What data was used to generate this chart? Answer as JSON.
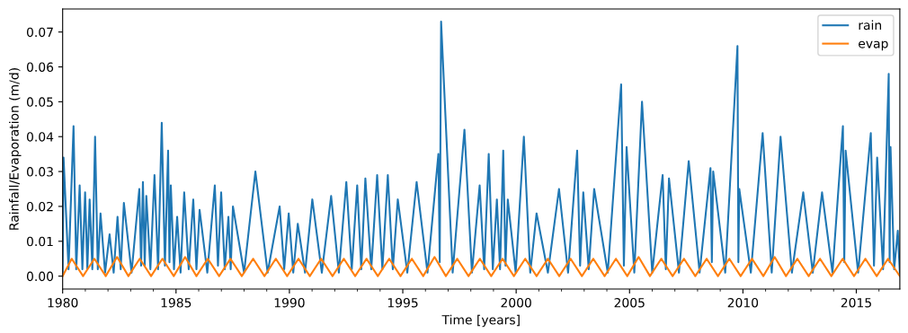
{
  "chart_data": {
    "type": "line",
    "xlabel": "Time [years]",
    "ylabel": "Rainfall/Evaporation (m/d)",
    "xlim": [
      1980,
      2016.92
    ],
    "xticks": [
      1980,
      1985,
      1990,
      1995,
      2000,
      2005,
      2010,
      2015
    ],
    "ylim": [
      -0.0037,
      0.0766
    ],
    "yticks": [
      {
        "value": 0,
        "label": "0.00"
      },
      {
        "value": 0.01,
        "label": "0.01"
      },
      {
        "value": 0.02,
        "label": "0.02"
      },
      {
        "value": 0.03,
        "label": "0.03"
      },
      {
        "value": 0.04,
        "label": "0.04"
      },
      {
        "value": 0.05,
        "label": "0.05"
      },
      {
        "value": 0.06,
        "label": "0.06"
      },
      {
        "value": 0.07,
        "label": "0.07"
      }
    ],
    "grid": false,
    "legend": "top right",
    "series": [
      {
        "name": "rain",
        "color": "#1f77b4",
        "x": [
          1980.0,
          1980.04,
          1980.26,
          1980.48,
          1980.6,
          1980.75,
          1980.87,
          1980.99,
          1981.09,
          1981.19,
          1981.31,
          1981.43,
          1981.55,
          1981.67,
          1981.87,
          1982.07,
          1982.25,
          1982.42,
          1982.56,
          1982.7,
          1983.04,
          1983.38,
          1983.46,
          1983.54,
          1983.62,
          1983.69,
          1983.87,
          1984.05,
          1984.21,
          1984.37,
          1984.51,
          1984.65,
          1984.71,
          1984.77,
          1984.91,
          1985.05,
          1985.2,
          1985.36,
          1985.56,
          1985.76,
          1985.9,
          1986.04,
          1986.38,
          1986.71,
          1986.85,
          1986.99,
          1987.15,
          1987.31,
          1987.41,
          1987.51,
          1988.0,
          1988.5,
          1989.04,
          1989.57,
          1989.77,
          1989.97,
          1990.17,
          1990.37,
          1990.69,
          1991.01,
          1991.43,
          1991.84,
          1992.18,
          1992.51,
          1992.75,
          1992.99,
          1993.17,
          1993.35,
          1993.61,
          1993.87,
          1994.1,
          1994.34,
          1994.56,
          1994.78,
          1995.2,
          1995.61,
          1996.09,
          1996.57,
          1996.63,
          1996.69,
          1997.2,
          1997.72,
          1998.05,
          1998.39,
          1998.59,
          1998.79,
          1998.97,
          1999.15,
          1999.29,
          1999.43,
          1999.53,
          1999.63,
          1999.98,
          2000.34,
          2000.62,
          2000.9,
          2001.4,
          2001.89,
          2002.29,
          2002.69,
          2002.82,
          2002.96,
          2003.2,
          2003.44,
          2004.04,
          2004.63,
          2004.75,
          2004.87,
          2005.21,
          2005.55,
          2006.0,
          2006.46,
          2006.6,
          2006.74,
          2007.18,
          2007.61,
          2008.09,
          2008.57,
          2008.63,
          2008.69,
          2009.22,
          2009.76,
          2009.8,
          2009.84,
          2010.35,
          2010.87,
          2011.27,
          2011.66,
          2012.16,
          2012.66,
          2013.08,
          2013.49,
          2013.95,
          2014.41,
          2014.47,
          2014.53,
          2015.08,
          2015.64,
          2015.78,
          2015.92,
          2016.18,
          2016.43,
          2016.47,
          2016.51,
          2016.67,
          2016.83,
          2016.92
        ],
        "values": [
          0.001,
          0.034,
          0.002,
          0.043,
          0.002,
          0.026,
          0.002,
          0.024,
          0.002,
          0.022,
          0.002,
          0.04,
          0.002,
          0.018,
          0.001,
          0.012,
          0.001,
          0.017,
          0.002,
          0.021,
          0.001,
          0.025,
          0.003,
          0.027,
          0.003,
          0.023,
          0.002,
          0.029,
          0.002,
          0.044,
          0.003,
          0.036,
          0.004,
          0.026,
          0.002,
          0.017,
          0.001,
          0.024,
          0.002,
          0.022,
          0.002,
          0.019,
          0.001,
          0.026,
          0.003,
          0.024,
          0.002,
          0.017,
          0.002,
          0.02,
          0.001,
          0.03,
          0.001,
          0.02,
          0.002,
          0.018,
          0.001,
          0.015,
          0.001,
          0.022,
          0.001,
          0.023,
          0.001,
          0.027,
          0.002,
          0.026,
          0.002,
          0.028,
          0.002,
          0.029,
          0.002,
          0.029,
          0.002,
          0.022,
          0.001,
          0.027,
          0.001,
          0.035,
          0.004,
          0.073,
          0.001,
          0.042,
          0.001,
          0.026,
          0.002,
          0.035,
          0.002,
          0.022,
          0.002,
          0.036,
          0.003,
          0.022,
          0.001,
          0.04,
          0.001,
          0.018,
          0.001,
          0.025,
          0.001,
          0.036,
          0.003,
          0.024,
          0.002,
          0.025,
          0.001,
          0.055,
          0.003,
          0.037,
          0.001,
          0.05,
          0.001,
          0.029,
          0.002,
          0.028,
          0.001,
          0.033,
          0.001,
          0.031,
          0.004,
          0.03,
          0.001,
          0.066,
          0.004,
          0.025,
          0.001,
          0.041,
          0.001,
          0.04,
          0.001,
          0.024,
          0.001,
          0.024,
          0.001,
          0.043,
          0.004,
          0.036,
          0.001,
          0.041,
          0.003,
          0.034,
          0.002,
          0.058,
          0.004,
          0.037,
          0.002,
          0.013,
          0.001
        ]
      },
      {
        "name": "evap",
        "color": "#ff7f0e",
        "x": [
          1980.0,
          1980.4,
          1980.9,
          1981.4,
          1981.9,
          1982.4,
          1982.9,
          1983.4,
          1983.9,
          1984.4,
          1984.9,
          1985.4,
          1985.9,
          1986.4,
          1986.9,
          1987.4,
          1987.9,
          1988.4,
          1988.9,
          1989.4,
          1989.9,
          1990.4,
          1990.9,
          1991.4,
          1991.9,
          1992.4,
          1992.9,
          1993.4,
          1993.9,
          1994.4,
          1994.9,
          1995.4,
          1995.9,
          1996.4,
          1996.9,
          1997.4,
          1997.9,
          1998.4,
          1998.9,
          1999.4,
          1999.9,
          2000.4,
          2000.9,
          2001.4,
          2001.9,
          2002.4,
          2002.9,
          2003.4,
          2003.9,
          2004.4,
          2004.9,
          2005.4,
          2005.9,
          2006.4,
          2006.9,
          2007.4,
          2007.9,
          2008.4,
          2008.9,
          2009.4,
          2009.9,
          2010.4,
          2010.9,
          2011.4,
          2011.9,
          2012.4,
          2012.9,
          2013.4,
          2013.9,
          2014.4,
          2014.9,
          2015.4,
          2015.9,
          2016.4,
          2016.92
        ],
        "values": [
          0.0,
          0.005,
          0.0,
          0.005,
          0.0,
          0.0055,
          0.0,
          0.005,
          0.0,
          0.005,
          0.0,
          0.0055,
          0.0,
          0.005,
          0.0,
          0.005,
          0.0,
          0.005,
          0.0,
          0.005,
          0.0,
          0.005,
          0.0,
          0.005,
          0.0,
          0.005,
          0.0,
          0.005,
          0.0,
          0.005,
          0.0,
          0.005,
          0.0,
          0.0055,
          0.0,
          0.005,
          0.0,
          0.005,
          0.0,
          0.005,
          0.0,
          0.005,
          0.0,
          0.005,
          0.0,
          0.005,
          0.0,
          0.005,
          0.0,
          0.005,
          0.0,
          0.0055,
          0.0,
          0.005,
          0.0,
          0.005,
          0.0,
          0.005,
          0.0,
          0.005,
          0.0,
          0.005,
          0.0,
          0.0055,
          0.0,
          0.005,
          0.0,
          0.005,
          0.0,
          0.005,
          0.0,
          0.005,
          0.0,
          0.005,
          0.0
        ]
      }
    ]
  }
}
